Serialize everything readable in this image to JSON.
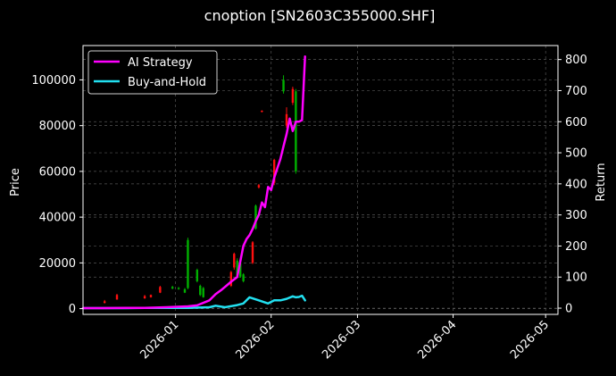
{
  "chart_data": {
    "type": "line",
    "title": "cnoption [SN2603C355000.SHF]",
    "ylabel_left": "Price",
    "ylabel_right": "Return",
    "x_range": [
      "2025-12-02",
      "2026-05-05"
    ],
    "ylim_left": [
      -2500,
      115000
    ],
    "ylim_right": [
      -20,
      845
    ],
    "x_ticks": [
      "2026-01",
      "2026-02",
      "2026-03",
      "2026-04",
      "2026-05"
    ],
    "y_ticks_left": [
      0,
      20000,
      40000,
      60000,
      80000,
      100000
    ],
    "y_ticks_right": [
      0,
      100,
      200,
      300,
      400,
      500,
      600,
      700,
      800
    ],
    "grid": true,
    "legend_position": "top-left",
    "colors": {
      "ai": "#ff00ff",
      "bh": "#22e0f0",
      "up": "#ff1010",
      "down": "#00b000",
      "grid": "#555555"
    },
    "series": [
      {
        "name": "AI Strategy",
        "axis": "right",
        "points": [
          [
            "2025-12-02",
            0
          ],
          [
            "2025-12-09",
            0
          ],
          [
            "2025-12-16",
            1
          ],
          [
            "2025-12-22",
            1
          ],
          [
            "2025-12-29",
            3
          ],
          [
            "2026-01-05",
            6
          ],
          [
            "2026-01-08",
            9
          ],
          [
            "2026-01-12",
            25
          ],
          [
            "2026-01-14",
            45
          ],
          [
            "2026-01-16",
            60
          ],
          [
            "2026-01-19",
            85
          ],
          [
            "2026-01-21",
            100
          ],
          [
            "2026-01-23",
            200
          ],
          [
            "2026-01-24",
            222
          ],
          [
            "2026-01-25",
            235
          ],
          [
            "2026-01-26",
            255
          ],
          [
            "2026-01-27",
            280
          ],
          [
            "2026-01-28",
            300
          ],
          [
            "2026-01-29",
            340
          ],
          [
            "2026-01-30",
            325
          ],
          [
            "2026-01-31",
            390
          ],
          [
            "2026-02-01",
            380
          ],
          [
            "2026-02-02",
            420
          ],
          [
            "2026-02-03",
            450
          ],
          [
            "2026-02-04",
            480
          ],
          [
            "2026-02-05",
            520
          ],
          [
            "2026-02-06",
            560
          ],
          [
            "2026-02-07",
            610
          ],
          [
            "2026-02-08",
            570
          ],
          [
            "2026-02-09",
            600
          ],
          [
            "2026-02-10",
            600
          ],
          [
            "2026-02-11",
            605
          ],
          [
            "2026-02-12",
            810
          ]
        ]
      },
      {
        "name": "Buy-and-Hold",
        "axis": "right",
        "points": [
          [
            "2025-12-02",
            0
          ],
          [
            "2025-12-16",
            0
          ],
          [
            "2025-12-22",
            1
          ],
          [
            "2026-01-05",
            1
          ],
          [
            "2026-01-12",
            3
          ],
          [
            "2026-01-14",
            8
          ],
          [
            "2026-01-17",
            3
          ],
          [
            "2026-01-21",
            10
          ],
          [
            "2026-01-23",
            15
          ],
          [
            "2026-01-25",
            35
          ],
          [
            "2026-01-28",
            25
          ],
          [
            "2026-01-31",
            15
          ],
          [
            "2026-02-02",
            25
          ],
          [
            "2026-02-04",
            25
          ],
          [
            "2026-02-06",
            30
          ],
          [
            "2026-02-08",
            38
          ],
          [
            "2026-02-09",
            35
          ],
          [
            "2026-02-10",
            36
          ],
          [
            "2026-02-11",
            40
          ],
          [
            "2026-02-12",
            25
          ]
        ]
      }
    ],
    "candles": [
      {
        "date": "2025-12-09",
        "open": 2500,
        "close": 3200,
        "low": 2300,
        "high": 3800
      },
      {
        "date": "2025-12-13",
        "open": 4000,
        "close": 6000,
        "low": 3900,
        "high": 6500
      },
      {
        "date": "2025-12-22",
        "open": 4500,
        "close": 5500,
        "low": 4300,
        "high": 6000
      },
      {
        "date": "2025-12-24",
        "open": 5000,
        "close": 6000,
        "low": 4800,
        "high": 6200
      },
      {
        "date": "2025-12-27",
        "open": 7000,
        "close": 9500,
        "low": 6800,
        "high": 10000
      },
      {
        "date": "2025-12-31",
        "open": 9500,
        "close": 8800,
        "low": 8500,
        "high": 10000
      },
      {
        "date": "2026-01-02",
        "open": 9000,
        "close": 8500,
        "low": 8300,
        "high": 9500
      },
      {
        "date": "2026-01-04",
        "open": 8500,
        "close": 7000,
        "low": 6800,
        "high": 9000
      },
      {
        "date": "2026-01-05",
        "open": 30000,
        "close": 9000,
        "low": 8500,
        "high": 31000
      },
      {
        "date": "2026-01-08",
        "open": 17000,
        "close": 12000,
        "low": 11500,
        "high": 17500
      },
      {
        "date": "2026-01-09",
        "open": 10000,
        "close": 6000,
        "low": 5500,
        "high": 10500
      },
      {
        "date": "2026-01-10",
        "open": 9000,
        "close": 5000,
        "low": 4800,
        "high": 9500
      },
      {
        "date": "2026-01-19",
        "open": 10000,
        "close": 16000,
        "low": 9500,
        "high": 16500
      },
      {
        "date": "2026-01-20",
        "open": 18000,
        "close": 24000,
        "low": 17000,
        "high": 24500
      },
      {
        "date": "2026-01-21",
        "open": 21000,
        "close": 14000,
        "low": 13500,
        "high": 22000
      },
      {
        "date": "2026-01-22",
        "open": 20000,
        "close": 14000,
        "low": 13500,
        "high": 20500
      },
      {
        "date": "2026-01-23",
        "open": 15000,
        "close": 12000,
        "low": 11500,
        "high": 15500
      },
      {
        "date": "2026-01-26",
        "open": 20000,
        "close": 29000,
        "low": 19500,
        "high": 29500
      },
      {
        "date": "2026-01-27",
        "open": 45000,
        "close": 35000,
        "low": 34500,
        "high": 45500
      },
      {
        "date": "2026-01-28",
        "open": 53000,
        "close": 54000,
        "low": 52500,
        "high": 54500
      },
      {
        "date": "2026-01-29",
        "open": 86000,
        "close": 86500,
        "low": 85800,
        "high": 86700
      },
      {
        "date": "2026-02-02",
        "open": 55000,
        "close": 65000,
        "low": 54000,
        "high": 65500
      },
      {
        "date": "2026-02-05",
        "open": 100000,
        "close": 95000,
        "low": 94000,
        "high": 102000
      },
      {
        "date": "2026-02-06",
        "open": 80000,
        "close": 85000,
        "low": 79000,
        "high": 88000
      },
      {
        "date": "2026-02-08",
        "open": 90000,
        "close": 96000,
        "low": 89000,
        "high": 97000
      },
      {
        "date": "2026-02-09",
        "open": 95000,
        "close": 60000,
        "low": 59000,
        "high": 96000
      }
    ]
  }
}
